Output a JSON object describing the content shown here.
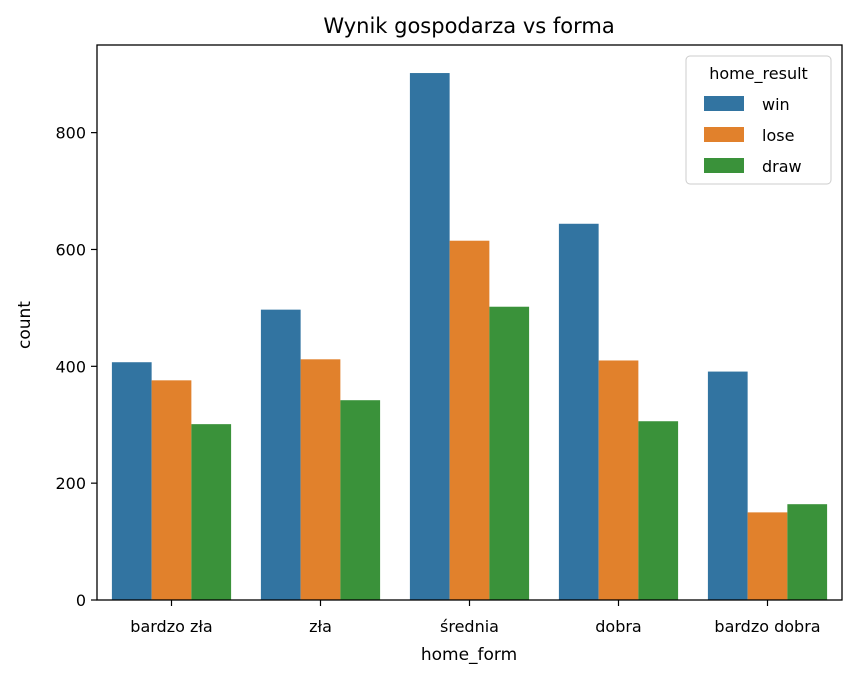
{
  "chart_data": {
    "type": "bar",
    "title": "Wynik gospodarza vs forma",
    "xlabel": "home_form",
    "ylabel": "count",
    "categories": [
      "bardzo zła",
      "zła",
      "średnia",
      "dobra",
      "bardzo dobra"
    ],
    "series": [
      {
        "name": "win",
        "color": "#3274a1",
        "values": [
          407,
          497,
          902,
          644,
          391
        ]
      },
      {
        "name": "lose",
        "color": "#e1812c",
        "values": [
          376,
          412,
          615,
          410,
          150
        ]
      },
      {
        "name": "draw",
        "color": "#3a923a",
        "values": [
          301,
          342,
          502,
          306,
          164
        ]
      }
    ],
    "ylim": [
      0,
      950
    ],
    "yticks": [
      0,
      200,
      400,
      600,
      800
    ],
    "legend": {
      "title": "home_result",
      "position": "top-right"
    },
    "grid": false
  }
}
